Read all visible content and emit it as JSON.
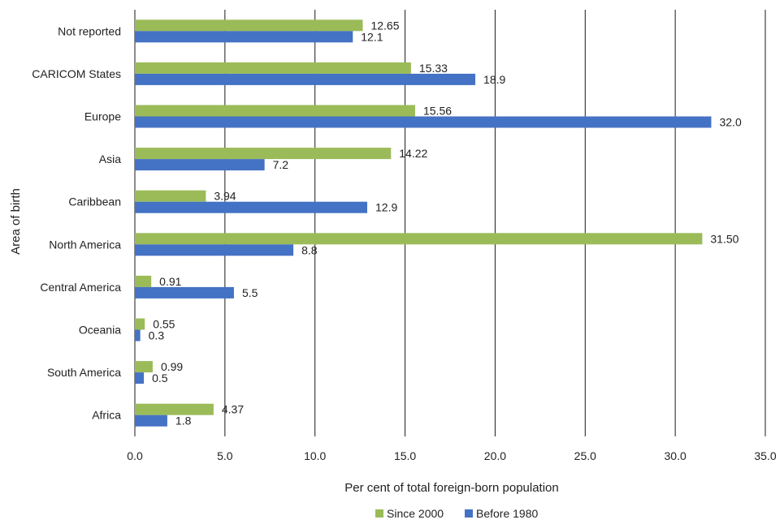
{
  "chart_data": {
    "type": "bar",
    "orientation": "horizontal",
    "categories": [
      "Not reported",
      "CARICOM States",
      "Europe",
      "Asia",
      "Caribbean",
      "North America",
      "Central America",
      "Oceania",
      "South America",
      "Africa"
    ],
    "series": [
      {
        "name": "Since 2000",
        "color": "#9BBB59",
        "values": [
          12.65,
          15.33,
          15.56,
          14.22,
          3.94,
          31.5,
          0.91,
          0.55,
          0.99,
          4.37
        ],
        "labels": [
          "12.65",
          "15.33",
          "15.56",
          "14.22",
          "3.94",
          "31.50",
          "0.91",
          "0.55",
          "0.99",
          "4.37"
        ]
      },
      {
        "name": "Before 1980",
        "color": "#4472C4",
        "values": [
          12.1,
          18.9,
          32.0,
          7.2,
          12.9,
          8.8,
          5.5,
          0.3,
          0.5,
          1.8
        ],
        "labels": [
          "12.1",
          "18.9",
          "32.0",
          "7.2",
          "12.9",
          "8.8",
          "5.5",
          "0.3",
          "0.5",
          "1.8"
        ]
      }
    ],
    "xlabel": "Per cent of total foreign-born population",
    "ylabel": "Area of birth",
    "xlim": [
      0,
      35
    ],
    "xticks": [
      "0.0",
      "5.0",
      "10.0",
      "15.0",
      "20.0",
      "25.0",
      "30.0",
      "35.0"
    ],
    "grid": "vertical",
    "legend_position": "bottom"
  }
}
